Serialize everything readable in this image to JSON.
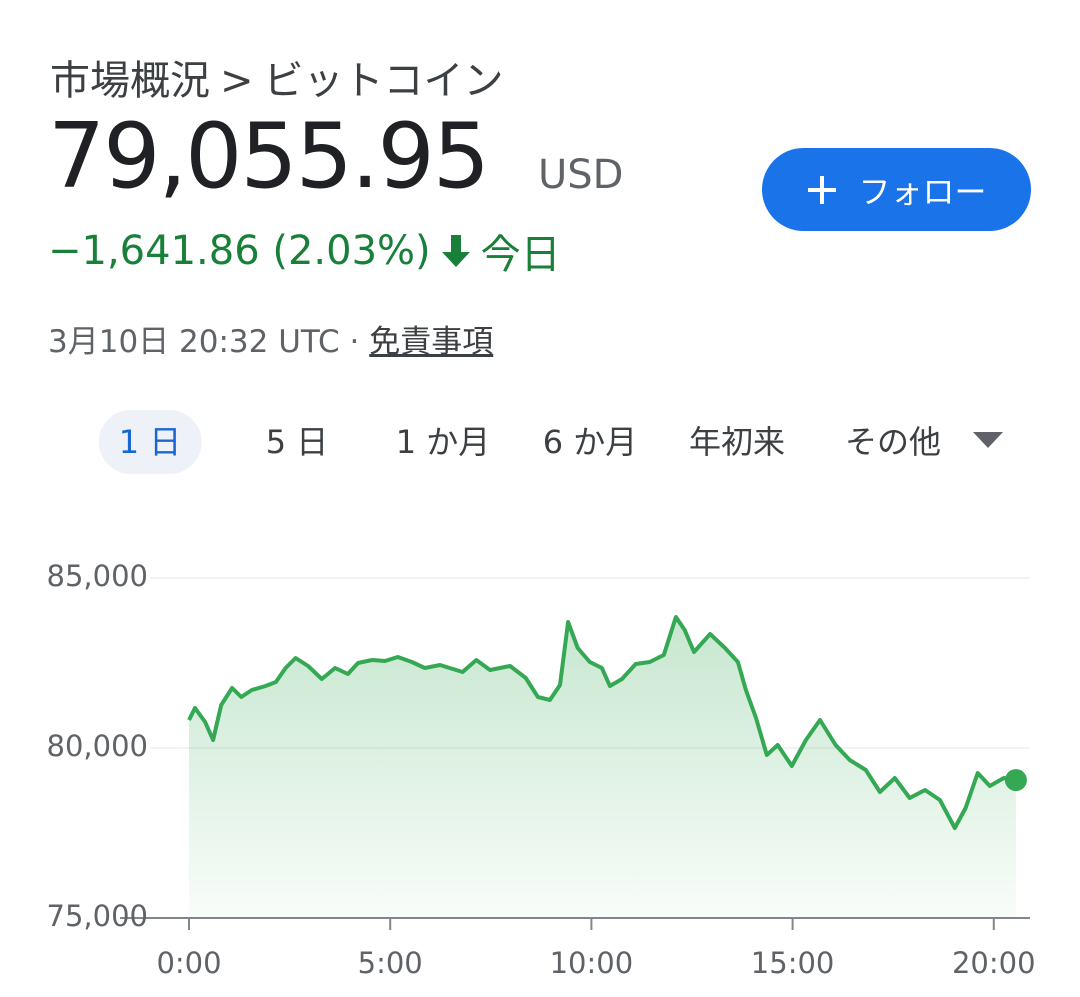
{
  "header": {
    "breadcrumb": [
      "市場概況",
      ">",
      "ビットコイン"
    ],
    "price": "79,055.95",
    "currency": "USD",
    "change": "−1,641.86 (2.03%)",
    "period": "今日",
    "follow": "フォロー",
    "timestamp": "3月10日 20:32 UTC",
    "separator": "·",
    "disclaimer": "免責事項"
  },
  "tabs": {
    "items": [
      "1 日",
      "5 日",
      "1 か月",
      "6 か月",
      "年初来",
      "その他"
    ],
    "selected": 0
  },
  "chart_data": {
    "type": "line",
    "color": "#34a853",
    "x": [
      0,
      0.15,
      0.4,
      0.6,
      0.8,
      1.07,
      1.3,
      1.56,
      1.9,
      2.16,
      2.4,
      2.65,
      2.96,
      3.3,
      3.63,
      3.95,
      4.2,
      4.55,
      4.87,
      5.19,
      5.54,
      5.86,
      6.24,
      6.8,
      7.14,
      7.48,
      7.98,
      8.37,
      8.67,
      8.97,
      9.22,
      9.42,
      9.66,
      9.96,
      10.26,
      10.46,
      10.76,
      11.1,
      11.45,
      11.8,
      12.1,
      12.32,
      12.55,
      12.95,
      13.32,
      13.64,
      13.84,
      14.09,
      14.36,
      14.63,
      14.98,
      15.33,
      15.68,
      16.07,
      16.42,
      16.82,
      17.17,
      17.54,
      17.91,
      18.29,
      18.66,
      19.03,
      19.3,
      19.6,
      19.9,
      20.25,
      20.55
    ],
    "values": [
      80824,
      81176,
      80765,
      80235,
      81265,
      81765,
      81500,
      81706,
      81824,
      81941,
      82353,
      82647,
      82412,
      82029,
      82353,
      82176,
      82500,
      82588,
      82559,
      82676,
      82529,
      82353,
      82441,
      82235,
      82588,
      82294,
      82412,
      82059,
      81500,
      81412,
      81853,
      83706,
      82941,
      82529,
      82353,
      81824,
      82029,
      82471,
      82529,
      82735,
      83853,
      83471,
      82824,
      83353,
      82941,
      82529,
      81706,
      80882,
      79794,
      80088,
      79471,
      80235,
      80824,
      80088,
      79647,
      79353,
      78706,
      79118,
      78529,
      78765,
      78471,
      77647,
      78235,
      79265,
      78882,
      79118,
      79056
    ],
    "xlim": [
      0,
      20.9
    ],
    "xticks": [
      {
        "value": 0,
        "label": "0:00"
      },
      {
        "value": 5,
        "label": "5:00"
      },
      {
        "value": 10,
        "label": "10:00"
      },
      {
        "value": 15,
        "label": "15:00"
      },
      {
        "value": 20,
        "label": "20:00"
      }
    ],
    "ylim": [
      75000,
      85000
    ],
    "yticks": [
      {
        "value": 75000,
        "label": "75,000"
      },
      {
        "value": 80000,
        "label": "80,000"
      },
      {
        "value": 85000,
        "label": "85,000"
      }
    ],
    "grid": true
  }
}
